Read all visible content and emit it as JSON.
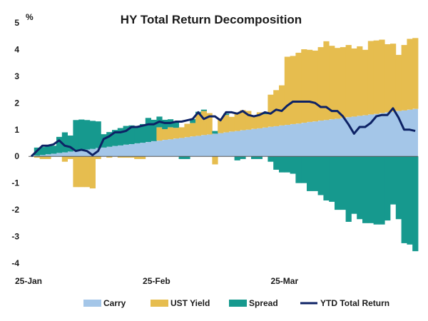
{
  "chart_data": {
    "type": "bar",
    "title": "HY Total Return Decomposition",
    "ylabel": "%",
    "xlabel": "",
    "ylim": [
      -4,
      5
    ],
    "yticks": [
      -4,
      -3,
      -2,
      -1,
      0,
      1,
      2,
      3,
      4,
      5
    ],
    "x_tick_labels": [
      {
        "index": 0,
        "label": "25-Jan"
      },
      {
        "index": 23,
        "label": "25-Feb"
      },
      {
        "index": 46,
        "label": "25-Mar"
      }
    ],
    "grid": false,
    "legend_position": "bottom",
    "n_points": 70,
    "colors": {
      "carry": "#a4c6e8",
      "ust_yield": "#e6bd4f",
      "spread": "#16998e",
      "total": "#0d2265"
    },
    "series": [
      {
        "name": "Carry",
        "type": "area",
        "values": [
          0.0,
          0.03,
          0.05,
          0.08,
          0.1,
          0.13,
          0.15,
          0.18,
          0.21,
          0.23,
          0.26,
          0.28,
          0.31,
          0.33,
          0.36,
          0.39,
          0.41,
          0.44,
          0.46,
          0.49,
          0.51,
          0.54,
          0.57,
          0.59,
          0.62,
          0.64,
          0.67,
          0.69,
          0.72,
          0.75,
          0.77,
          0.8,
          0.82,
          0.85,
          0.87,
          0.9,
          0.93,
          0.95,
          0.98,
          1.0,
          1.03,
          1.05,
          1.08,
          1.11,
          1.13,
          1.16,
          1.18,
          1.21,
          1.23,
          1.26,
          1.29,
          1.31,
          1.34,
          1.36,
          1.39,
          1.41,
          1.44,
          1.47,
          1.49,
          1.52,
          1.54,
          1.57,
          1.59,
          1.62,
          1.65,
          1.67,
          1.7,
          1.72,
          1.75,
          1.78
        ]
      },
      {
        "name": "UST Yield",
        "type": "bar",
        "values": [
          0.0,
          -0.05,
          -0.1,
          -0.1,
          0.0,
          0.0,
          -0.2,
          -0.1,
          -1.15,
          -1.15,
          -1.15,
          -1.2,
          -0.1,
          0.0,
          -0.05,
          0.0,
          -0.05,
          -0.05,
          -0.05,
          -0.1,
          -0.1,
          0.0,
          0.0,
          0.5,
          0.4,
          0.45,
          0.4,
          0.4,
          0.5,
          0.5,
          0.8,
          0.9,
          0.8,
          -0.3,
          0.55,
          0.65,
          0.55,
          0.7,
          0.75,
          0.7,
          0.5,
          0.6,
          0.5,
          1.2,
          1.35,
          1.5,
          2.55,
          2.55,
          2.65,
          2.75,
          2.7,
          2.65,
          2.75,
          2.95,
          2.75,
          2.65,
          2.65,
          2.7,
          2.55,
          2.6,
          2.45,
          2.75,
          2.75,
          2.75,
          2.55,
          2.55,
          2.1,
          2.45,
          2.65,
          2.65
        ]
      },
      {
        "name": "Spread",
        "type": "bar",
        "values": [
          0.0,
          0.3,
          0.3,
          0.35,
          0.3,
          0.6,
          0.75,
          0.6,
          1.15,
          1.15,
          1.1,
          1.05,
          1.0,
          0.5,
          0.55,
          0.6,
          0.65,
          0.7,
          0.7,
          0.65,
          0.7,
          0.9,
          0.8,
          0.4,
          0.35,
          0.3,
          0.2,
          -0.1,
          -0.1,
          0.15,
          0.1,
          0.05,
          0.0,
          0.1,
          0.0,
          0.05,
          0.0,
          -0.15,
          -0.1,
          0.0,
          -0.1,
          -0.1,
          0.05,
          -0.2,
          -0.5,
          -0.6,
          -0.6,
          -0.65,
          -1.0,
          -1.0,
          -1.3,
          -1.3,
          -1.45,
          -1.65,
          -1.7,
          -2.0,
          -2.0,
          -2.45,
          -2.15,
          -2.35,
          -2.5,
          -2.5,
          -2.55,
          -2.55,
          -2.4,
          -1.8,
          -2.35,
          -3.25,
          -3.3,
          -3.55
        ]
      },
      {
        "name": "YTD Total Return",
        "type": "line",
        "values": [
          0.0,
          0.2,
          0.4,
          0.4,
          0.45,
          0.6,
          0.4,
          0.35,
          0.2,
          0.25,
          0.2,
          0.05,
          0.2,
          0.65,
          0.75,
          0.9,
          0.9,
          0.95,
          1.1,
          1.1,
          1.15,
          1.2,
          1.2,
          1.3,
          1.25,
          1.25,
          1.3,
          1.3,
          1.35,
          1.4,
          1.65,
          1.4,
          1.5,
          1.5,
          1.35,
          1.65,
          1.65,
          1.6,
          1.7,
          1.55,
          1.5,
          1.55,
          1.65,
          1.6,
          1.75,
          1.7,
          1.9,
          2.05,
          2.05,
          2.05,
          2.05,
          2.0,
          1.85,
          1.85,
          1.7,
          1.7,
          1.5,
          1.2,
          0.85,
          1.1,
          1.1,
          1.25,
          1.5,
          1.55,
          1.55,
          1.8,
          1.45,
          1.0,
          1.0,
          0.95
        ]
      }
    ]
  }
}
